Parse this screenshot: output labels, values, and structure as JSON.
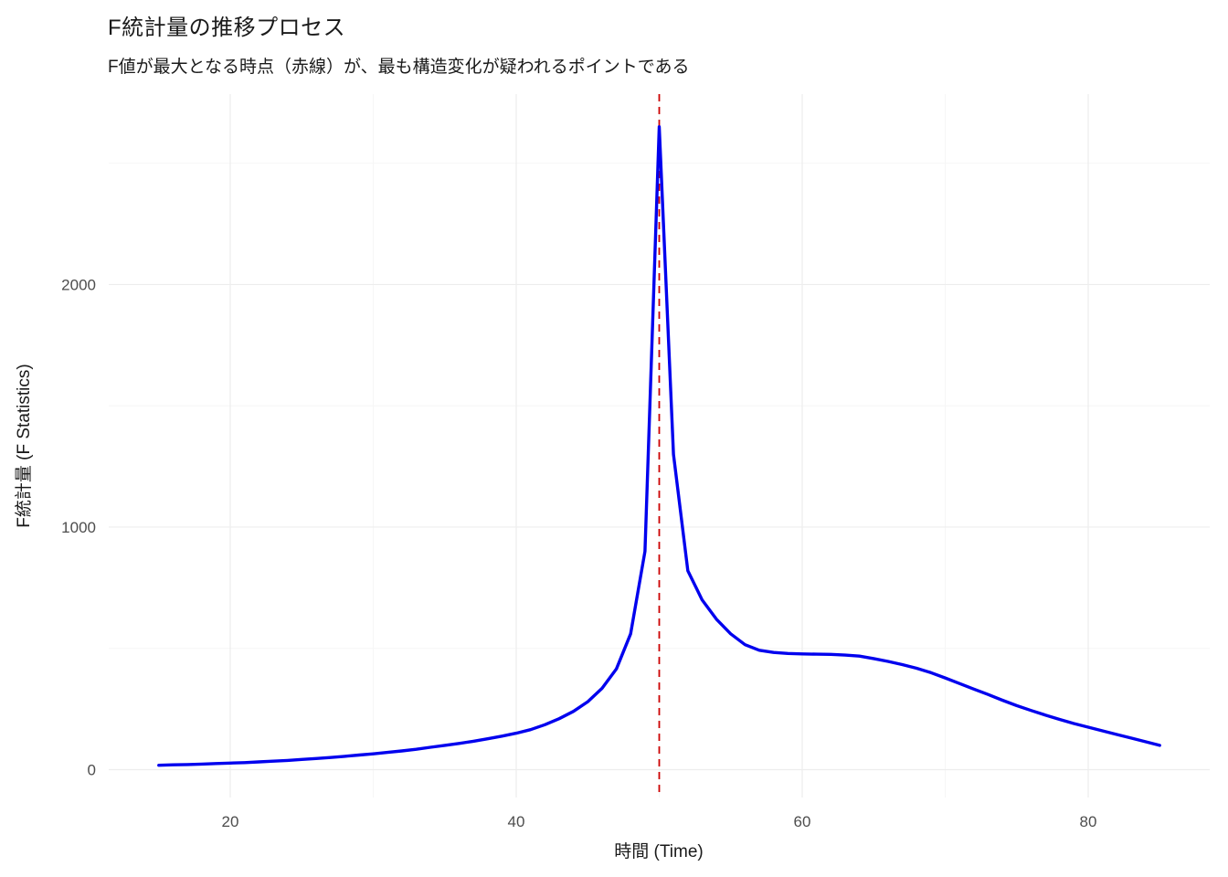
{
  "chart_data": {
    "type": "line",
    "title": "F統計量の推移プロセス",
    "subtitle": "F値が最大となる時点（赤線）が、最も構造変化が疑われるポイントである",
    "xlabel": "時間 (Time)",
    "ylabel": "F統計量 (F Statistics)",
    "legend": "none",
    "grid": true,
    "x_ticks": [
      20,
      40,
      60,
      80
    ],
    "x_minor_ticks": [
      30,
      50,
      70
    ],
    "y_ticks": [
      0,
      1000,
      2000
    ],
    "y_minor_ticks": [
      500,
      1500,
      2500
    ],
    "xlim": [
      11.5,
      88.5
    ],
    "ylim": [
      -115,
      2785
    ],
    "series_name": "F statistic",
    "x": [
      15,
      16,
      17,
      18,
      19,
      20,
      21,
      22,
      23,
      24,
      25,
      26,
      27,
      28,
      29,
      30,
      31,
      32,
      33,
      34,
      35,
      36,
      37,
      38,
      39,
      40,
      41,
      42,
      43,
      44,
      45,
      46,
      47,
      48,
      49,
      50,
      51,
      52,
      53,
      54,
      55,
      56,
      57,
      58,
      59,
      60,
      61,
      62,
      63,
      64,
      65,
      66,
      67,
      68,
      69,
      70,
      71,
      72,
      73,
      74,
      75,
      76,
      77,
      78,
      79,
      80,
      81,
      82,
      83,
      84,
      85
    ],
    "y": [
      18,
      20,
      21,
      23,
      25,
      27,
      29,
      32,
      35,
      38,
      42,
      46,
      50,
      55,
      60,
      65,
      71,
      77,
      84,
      92,
      100,
      108,
      117,
      127,
      138,
      150,
      165,
      185,
      210,
      240,
      280,
      335,
      415,
      560,
      900,
      2650,
      1300,
      820,
      700,
      620,
      560,
      515,
      492,
      483,
      479,
      477,
      476,
      475,
      472,
      468,
      458,
      446,
      433,
      418,
      400,
      378,
      355,
      332,
      310,
      286,
      264,
      244,
      225,
      207,
      190,
      175,
      160,
      145,
      130,
      115,
      100
    ],
    "peak": {
      "x": 50,
      "y": 2650
    },
    "vline": {
      "x": 50,
      "style": "dashed"
    },
    "colors": {
      "line": "#0000EE",
      "vline": "#CC0000",
      "grid_major": "#EDEDED",
      "grid_minor": "#F6F6F6",
      "tick_label": "#4D4D4D",
      "text": "#1A1A1A"
    }
  }
}
